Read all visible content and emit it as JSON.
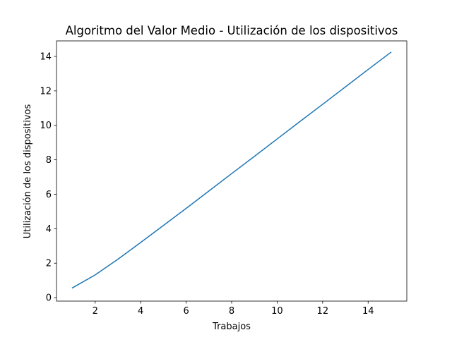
{
  "chart_data": {
    "type": "line",
    "title": "Algoritmo del Valor Medio - Utilización de los dispositivos",
    "xlabel": "Trabajos",
    "ylabel": "Utilización de los dispositivos",
    "xlim": [
      0.3,
      15.7
    ],
    "ylim": [
      -0.2,
      14.9
    ],
    "xticks": [
      2,
      4,
      6,
      8,
      10,
      12,
      14
    ],
    "yticks": [
      0,
      2,
      4,
      6,
      8,
      10,
      12,
      14
    ],
    "grid": false,
    "series": [
      {
        "color": "#1f77b4",
        "x": [
          1,
          2,
          3,
          4,
          5,
          6,
          7,
          8,
          9,
          10,
          11,
          12,
          13,
          14,
          15
        ],
        "y": [
          0.57,
          1.32,
          2.23,
          3.2,
          4.19,
          5.18,
          6.19,
          7.2,
          8.2,
          9.21,
          10.22,
          11.22,
          12.23,
          13.24,
          14.24
        ]
      }
    ]
  }
}
